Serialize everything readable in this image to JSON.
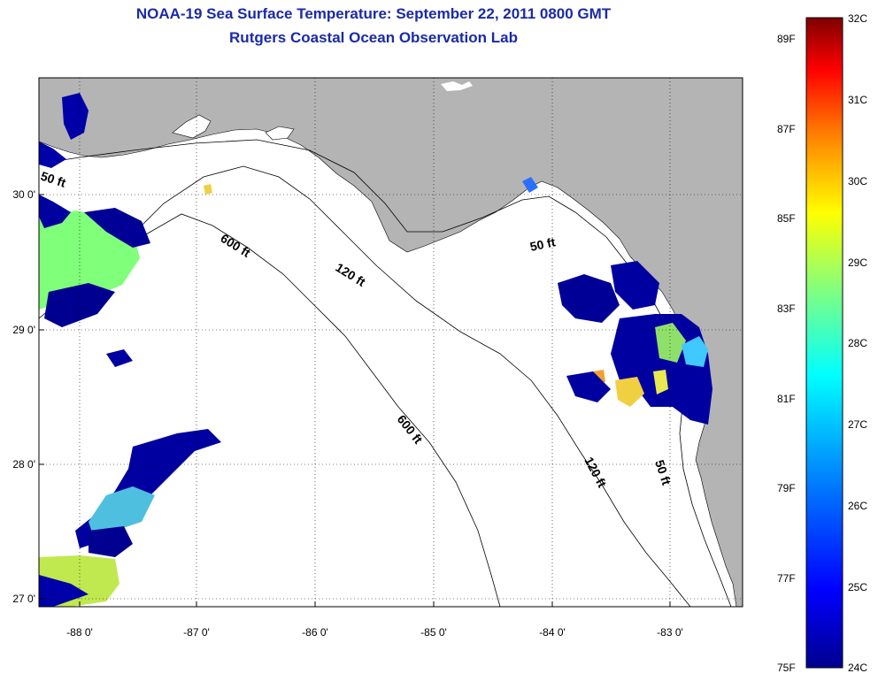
{
  "title": {
    "line1": "NOAA-19 Sea Surface Temperature:  September 22, 2011 0800 GMT",
    "line2": "Rutgers Coastal Ocean Observation Lab"
  },
  "axes": {
    "x_ticks": [
      "-88 0'",
      "-87 0'",
      "-86 0'",
      "-85 0'",
      "-84 0'",
      "-83 0'"
    ],
    "y_ticks": [
      "30 0'",
      "29 0'",
      "28 0'",
      "27 0'"
    ]
  },
  "contours": {
    "labels": [
      "50 ft",
      "600 ft",
      "120 ft",
      "50 ft",
      "600 ft",
      "120 ft",
      "50 ft"
    ]
  },
  "colorbar": {
    "fahrenheit": [
      "89F",
      "87F",
      "85F",
      "83F",
      "81F",
      "79F",
      "77F",
      "75F"
    ],
    "celsius": [
      "32C",
      "31C",
      "30C",
      "29C",
      "28C",
      "27C",
      "26C",
      "25C",
      "24C"
    ],
    "colors": [
      "#7f0000",
      "#ff0000",
      "#ff8000",
      "#ffff00",
      "#80ff80",
      "#00ffff",
      "#0080ff",
      "#0000ff",
      "#00008f"
    ]
  },
  "colors": {
    "land": "#b4b4b4",
    "ocean": "#ffffff",
    "title": "#1a2aa8"
  }
}
